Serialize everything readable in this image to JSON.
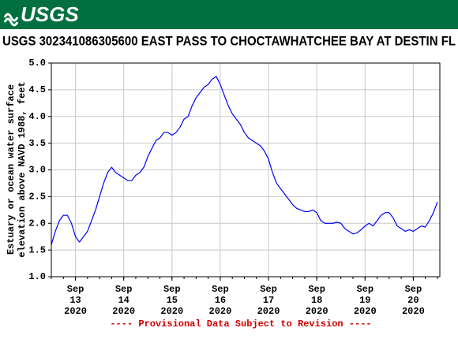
{
  "header": {
    "logo": "USGS"
  },
  "chart_data": {
    "type": "line",
    "title": "USGS 302341086305600 EAST PASS TO CHOCTAWHATCHEE BAY AT DESTIN FL",
    "ylabel": [
      "Estuary or ocean water surface",
      "elevation above NAVD 1988, feet"
    ],
    "footnote": "---- Provisional Data Subject to Revision ----",
    "footnote_color": "#cc0000",
    "color": "#0000ff",
    "grid": true,
    "ylim": [
      1,
      5
    ],
    "yticks": [
      {
        "value": 1,
        "label": "1.0"
      },
      1.5,
      {
        "value": 2,
        "label": "2.0"
      },
      2.5,
      {
        "value": 3,
        "label": "3.0"
      },
      3.5,
      {
        "value": 4,
        "label": "4.0"
      },
      4.5,
      {
        "value": 5,
        "label": "5.0"
      }
    ],
    "xlim": [
      12.5,
      20.55
    ],
    "xticks": [
      {
        "value": 13,
        "label": [
          "Sep",
          "13",
          "2020"
        ]
      },
      {
        "value": 14,
        "label": [
          "Sep",
          "14",
          "2020"
        ]
      },
      {
        "value": 15,
        "label": [
          "Sep",
          "15",
          "2020"
        ]
      },
      {
        "value": 16,
        "label": [
          "Sep",
          "16",
          "2020"
        ]
      },
      {
        "value": 17,
        "label": [
          "Sep",
          "17",
          "2020"
        ]
      },
      {
        "value": 18,
        "label": [
          "Sep",
          "18",
          "2020"
        ]
      },
      {
        "value": 19,
        "label": [
          "Sep",
          "19",
          "2020"
        ]
      },
      {
        "value": 20,
        "label": [
          "Sep",
          "20",
          "2020"
        ]
      }
    ],
    "x": [
      12.5,
      12.583,
      12.667,
      12.75,
      12.833,
      12.917,
      13,
      13.083,
      13.167,
      13.25,
      13.333,
      13.417,
      13.5,
      13.583,
      13.667,
      13.75,
      13.833,
      13.917,
      14,
      14.083,
      14.167,
      14.25,
      14.333,
      14.417,
      14.5,
      14.583,
      14.667,
      14.75,
      14.833,
      14.917,
      15,
      15.083,
      15.167,
      15.25,
      15.333,
      15.417,
      15.5,
      15.583,
      15.667,
      15.75,
      15.833,
      15.917,
      16,
      16.083,
      16.167,
      16.25,
      16.333,
      16.417,
      16.5,
      16.583,
      16.667,
      16.75,
      16.833,
      16.917,
      17,
      17.083,
      17.167,
      17.25,
      17.333,
      17.417,
      17.5,
      17.583,
      17.667,
      17.75,
      17.833,
      17.917,
      18,
      18.083,
      18.167,
      18.25,
      18.333,
      18.417,
      18.5,
      18.583,
      18.667,
      18.75,
      18.833,
      18.917,
      19,
      19.083,
      19.167,
      19.25,
      19.333,
      19.417,
      19.5,
      19.583,
      19.667,
      19.75,
      19.833,
      19.917,
      20,
      20.083,
      20.167,
      20.25,
      20.333,
      20.417,
      20.5
    ],
    "values": [
      1.6,
      1.85,
      2.05,
      2.15,
      2.15,
      2.0,
      1.75,
      1.65,
      1.75,
      1.85,
      2.05,
      2.25,
      2.5,
      2.75,
      2.95,
      3.05,
      2.95,
      2.9,
      2.85,
      2.8,
      2.8,
      2.9,
      2.95,
      3.05,
      3.25,
      3.4,
      3.55,
      3.6,
      3.7,
      3.7,
      3.65,
      3.7,
      3.8,
      3.95,
      4.0,
      4.2,
      4.35,
      4.45,
      4.55,
      4.6,
      4.7,
      4.75,
      4.6,
      4.4,
      4.2,
      4.05,
      3.95,
      3.85,
      3.7,
      3.6,
      3.55,
      3.5,
      3.45,
      3.35,
      3.2,
      2.95,
      2.75,
      2.65,
      2.55,
      2.45,
      2.35,
      2.28,
      2.25,
      2.22,
      2.22,
      2.25,
      2.2,
      2.05,
      2.0,
      2.0,
      2.0,
      2.02,
      2.0,
      1.9,
      1.85,
      1.8,
      1.82,
      1.88,
      1.95,
      2.0,
      1.95,
      2.05,
      2.15,
      2.2,
      2.2,
      2.1,
      1.95,
      1.9,
      1.85,
      1.88,
      1.85,
      1.9,
      1.95,
      1.93,
      2.05,
      2.2,
      2.4
    ]
  }
}
